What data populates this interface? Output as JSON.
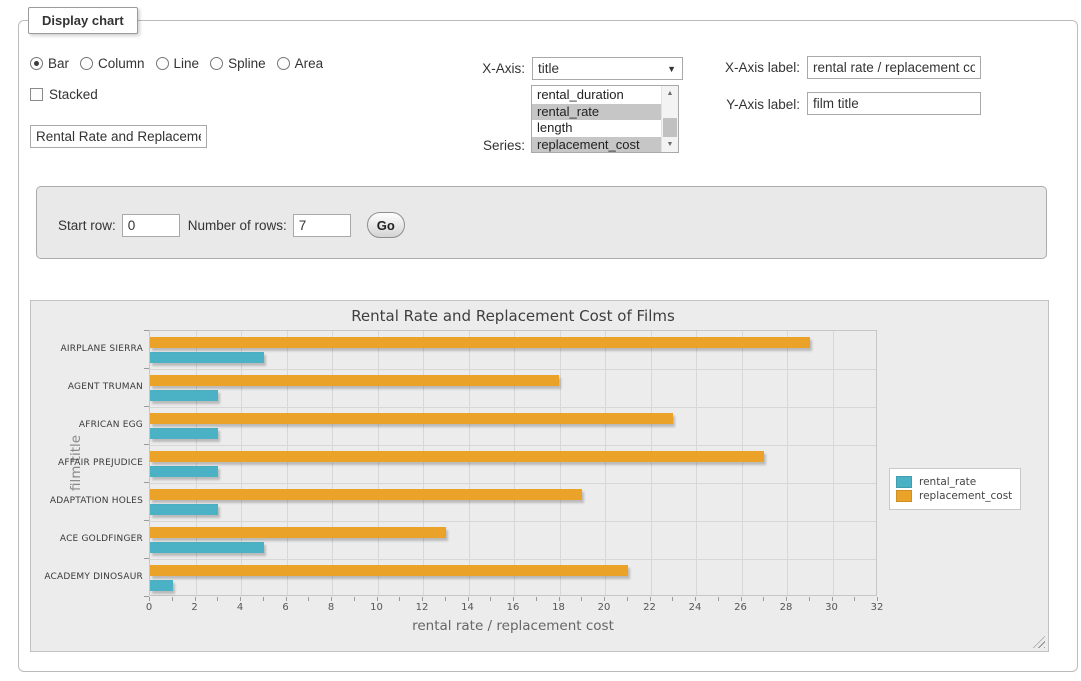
{
  "fieldset": {
    "legend": "Display chart"
  },
  "chart_type_options": [
    {
      "label": "Bar",
      "selected": true
    },
    {
      "label": "Column",
      "selected": false
    },
    {
      "label": "Line",
      "selected": false
    },
    {
      "label": "Spline",
      "selected": false
    },
    {
      "label": "Area",
      "selected": false
    }
  ],
  "stacked": {
    "label": "Stacked",
    "checked": false
  },
  "title_input": {
    "value": "Rental Rate and Replacement Cost of Films"
  },
  "x_axis": {
    "label": "X-Axis:",
    "selected": "title"
  },
  "series_select": {
    "label": "Series:",
    "options": [
      {
        "label": "rental_duration",
        "selected": false
      },
      {
        "label": "rental_rate",
        "selected": true
      },
      {
        "label": "length",
        "selected": false
      },
      {
        "label": "replacement_cost",
        "selected": true
      }
    ]
  },
  "x_axis_label": {
    "label": "X-Axis label:",
    "value": "rental rate / replacement cost"
  },
  "y_axis_label": {
    "label": "Y-Axis label:",
    "value": "film title"
  },
  "row_controls": {
    "start_row_label": "Start row:",
    "start_row_value": "0",
    "num_rows_label": "Number of rows:",
    "num_rows_value": "7",
    "go_label": "Go"
  },
  "chart_data": {
    "type": "bar",
    "orientation": "horizontal",
    "title": "Rental Rate and Replacement Cost of Films",
    "categories": [
      "AIRPLANE SIERRA",
      "AGENT TRUMAN",
      "AFRICAN EGG",
      "AFFAIR PREJUDICE",
      "ADAPTATION HOLES",
      "ACE GOLDFINGER",
      "ACADEMY DINOSAUR"
    ],
    "series": [
      {
        "name": "rental_rate",
        "color": "#4bb2c5",
        "values": [
          4.99,
          2.99,
          2.99,
          2.99,
          2.99,
          4.99,
          0.99
        ]
      },
      {
        "name": "replacement_cost",
        "color": "#eaa228",
        "values": [
          28.99,
          17.99,
          22.99,
          26.99,
          18.99,
          12.99,
          20.99
        ]
      }
    ],
    "xlabel": "rental rate / replacement cost",
    "ylabel": "film title",
    "xlim": [
      0,
      32
    ],
    "x_tick_step": 2,
    "minor_tick_step": 1,
    "grid": true,
    "legend_position": "right"
  }
}
